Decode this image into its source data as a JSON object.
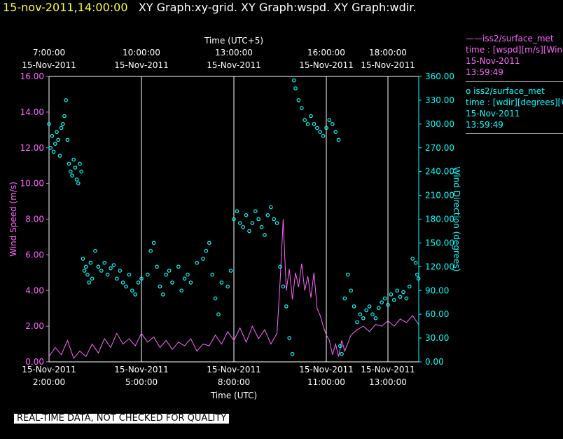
{
  "header": {
    "timestamp": "15-nov-2011,14:00:00",
    "titles": "XY Graph:xy-grid.  XY Graph:wspd.  XY Graph:wdir."
  },
  "disclaimer": "REAL-TIME DATA, NOT CHECKED FOR QUALITY",
  "legend": [
    {
      "line1": "——iss2/surface_met",
      "line2": "time : [wspd][m/s][Wind",
      "line3": "15-Nov-2011",
      "line4": "13:59:49"
    },
    {
      "line1": "o  iss2/surface_met",
      "line2": "time : [wdir][degrees][W",
      "line3": "15-Nov-2011",
      "line4": "13:59:49"
    }
  ],
  "colors": {
    "wspd": "#ff66ff",
    "wdir": "#00ffff",
    "grid": "#ffffff",
    "timestamp": "#ffff33"
  },
  "chart_data": {
    "type": "line",
    "top_axis_title": "Time (UTC+5)",
    "top_ticks": [
      {
        "line1": "7:00:00",
        "line2": "15-Nov-2011",
        "hour": 2.0
      },
      {
        "line1": "10:00:00",
        "line2": "15-Nov-2011",
        "hour": 5.0
      },
      {
        "line1": "13:00:00",
        "line2": "15-Nov-2011",
        "hour": 8.0
      },
      {
        "line1": "16:00:00",
        "line2": "15-Nov-2011",
        "hour": 11.0
      },
      {
        "line1": "18:00:00",
        "line2": "15-Nov-2011",
        "hour": 13.0
      }
    ],
    "xlabel": "Time (UTC)",
    "bottom_ticks": [
      {
        "line1": "15-Nov-2011",
        "line2": "2:00:00",
        "hour": 2.0
      },
      {
        "line1": "15-Nov-2011",
        "line2": "5:00:00",
        "hour": 5.0
      },
      {
        "line1": "15-Nov-2011",
        "line2": "8:00:00",
        "hour": 8.0
      },
      {
        "line1": "15-Nov-2011",
        "line2": "11:00:00",
        "hour": 11.0
      },
      {
        "line1": "15-Nov-2011",
        "line2": "13:00:00",
        "hour": 13.0
      }
    ],
    "xlim_hours_utc": [
      2.0,
      14.0
    ],
    "ylabel_left": "Wind Speed (m/s)",
    "ylim_left": [
      0,
      16
    ],
    "yticks_left": [
      "0.00",
      "2.00",
      "4.00",
      "6.00",
      "8.00",
      "10.00",
      "12.00",
      "14.00",
      "16.00"
    ],
    "ylabel_right": "Wind Direction (degrees)",
    "ylim_right": [
      0,
      360
    ],
    "yticks_right": [
      "0.00",
      "30.00",
      "60.00",
      "90.00",
      "120.00",
      "150.00",
      "180.00",
      "210.00",
      "240.00",
      "270.00",
      "300.00",
      "330.00",
      "360.00"
    ],
    "grid": "vertical lines at bottom ticks",
    "series": [
      {
        "name": "iss2/surface_met time : [wspd][m/s]",
        "axis": "left",
        "style": "line",
        "points": [
          [
            2.0,
            0.3
          ],
          [
            2.2,
            0.8
          ],
          [
            2.4,
            0.4
          ],
          [
            2.6,
            1.2
          ],
          [
            2.8,
            0.2
          ],
          [
            3.0,
            0.6
          ],
          [
            3.2,
            0.3
          ],
          [
            3.4,
            1.0
          ],
          [
            3.6,
            0.5
          ],
          [
            3.8,
            1.3
          ],
          [
            4.0,
            0.8
          ],
          [
            4.2,
            1.6
          ],
          [
            4.4,
            1.0
          ],
          [
            4.6,
            1.3
          ],
          [
            4.8,
            0.9
          ],
          [
            5.0,
            1.6
          ],
          [
            5.2,
            1.1
          ],
          [
            5.4,
            1.4
          ],
          [
            5.6,
            0.8
          ],
          [
            5.8,
            1.2
          ],
          [
            6.0,
            0.7
          ],
          [
            6.2,
            1.1
          ],
          [
            6.4,
            0.9
          ],
          [
            6.6,
            1.3
          ],
          [
            6.8,
            0.6
          ],
          [
            7.0,
            1.0
          ],
          [
            7.2,
            0.9
          ],
          [
            7.4,
            1.5
          ],
          [
            7.6,
            1.0
          ],
          [
            7.8,
            1.7
          ],
          [
            8.0,
            1.2
          ],
          [
            8.2,
            1.9
          ],
          [
            8.4,
            1.1
          ],
          [
            8.6,
            2.0
          ],
          [
            8.8,
            1.3
          ],
          [
            9.0,
            1.8
          ],
          [
            9.2,
            1.0
          ],
          [
            9.4,
            1.6
          ],
          [
            9.5,
            4.5
          ],
          [
            9.6,
            8.0
          ],
          [
            9.7,
            4.0
          ],
          [
            9.8,
            5.2
          ],
          [
            9.9,
            3.5
          ],
          [
            10.0,
            5.0
          ],
          [
            10.1,
            4.2
          ],
          [
            10.2,
            5.5
          ],
          [
            10.3,
            4.0
          ],
          [
            10.4,
            4.8
          ],
          [
            10.5,
            3.6
          ],
          [
            10.6,
            5.0
          ],
          [
            10.7,
            3.0
          ],
          [
            10.8,
            2.6
          ],
          [
            10.9,
            2.0
          ],
          [
            11.0,
            1.5
          ],
          [
            11.1,
            1.2
          ],
          [
            11.2,
            0.4
          ],
          [
            11.3,
            1.0
          ],
          [
            11.4,
            0.3
          ],
          [
            11.5,
            1.2
          ],
          [
            11.6,
            0.6
          ],
          [
            11.8,
            1.5
          ],
          [
            12.0,
            1.8
          ],
          [
            12.2,
            2.0
          ],
          [
            12.4,
            1.7
          ],
          [
            12.6,
            2.1
          ],
          [
            12.8,
            2.0
          ],
          [
            13.0,
            2.3
          ],
          [
            13.2,
            2.0
          ],
          [
            13.4,
            2.4
          ],
          [
            13.6,
            2.2
          ],
          [
            13.8,
            2.6
          ],
          [
            13.99,
            2.1
          ]
        ]
      },
      {
        "name": "iss2/surface_met time : [wdir][degrees]",
        "axis": "right",
        "style": "markers",
        "points": [
          [
            2.0,
            300
          ],
          [
            2.05,
            270
          ],
          [
            2.1,
            285
          ],
          [
            2.15,
            265
          ],
          [
            2.2,
            275
          ],
          [
            2.25,
            290
          ],
          [
            2.3,
            280
          ],
          [
            2.35,
            260
          ],
          [
            2.4,
            295
          ],
          [
            2.45,
            300
          ],
          [
            2.5,
            310
          ],
          [
            2.55,
            330
          ],
          [
            2.6,
            280
          ],
          [
            2.65,
            250
          ],
          [
            2.7,
            240
          ],
          [
            2.75,
            235
          ],
          [
            2.8,
            255
          ],
          [
            2.85,
            245
          ],
          [
            2.9,
            230
          ],
          [
            2.95,
            225
          ],
          [
            3.0,
            250
          ],
          [
            3.05,
            240
          ],
          [
            3.1,
            130
          ],
          [
            3.15,
            115
          ],
          [
            3.2,
            120
          ],
          [
            3.25,
            110
          ],
          [
            3.3,
            100
          ],
          [
            3.35,
            125
          ],
          [
            3.4,
            105
          ],
          [
            3.5,
            140
          ],
          [
            3.6,
            120
          ],
          [
            3.7,
            115
          ],
          [
            3.8,
            125
          ],
          [
            3.9,
            110
          ],
          [
            4.0,
            118
          ],
          [
            4.1,
            122
          ],
          [
            4.2,
            105
          ],
          [
            4.3,
            115
          ],
          [
            4.4,
            100
          ],
          [
            4.5,
            95
          ],
          [
            4.6,
            110
          ],
          [
            4.7,
            90
          ],
          [
            4.8,
            85
          ],
          [
            4.9,
            100
          ],
          [
            5.0,
            105
          ],
          [
            5.2,
            110
          ],
          [
            5.3,
            140
          ],
          [
            5.4,
            150
          ],
          [
            5.5,
            120
          ],
          [
            5.6,
            95
          ],
          [
            5.7,
            85
          ],
          [
            5.8,
            110
          ],
          [
            5.9,
            115
          ],
          [
            6.0,
            100
          ],
          [
            6.2,
            120
          ],
          [
            6.3,
            90
          ],
          [
            6.4,
            105
          ],
          [
            6.5,
            110
          ],
          [
            6.6,
            100
          ],
          [
            6.8,
            125
          ],
          [
            7.0,
            130
          ],
          [
            7.1,
            140
          ],
          [
            7.2,
            150
          ],
          [
            7.3,
            110
          ],
          [
            7.4,
            80
          ],
          [
            7.5,
            60
          ],
          [
            7.6,
            100
          ],
          [
            7.8,
            95
          ],
          [
            7.9,
            115
          ],
          [
            8.0,
            180
          ],
          [
            8.1,
            190
          ],
          [
            8.2,
            175
          ],
          [
            8.3,
            170
          ],
          [
            8.4,
            185
          ],
          [
            8.5,
            165
          ],
          [
            8.6,
            175
          ],
          [
            8.7,
            190
          ],
          [
            8.8,
            180
          ],
          [
            8.9,
            170
          ],
          [
            9.0,
            160
          ],
          [
            9.1,
            185
          ],
          [
            9.2,
            195
          ],
          [
            9.3,
            180
          ],
          [
            9.4,
            175
          ],
          [
            9.5,
            120
          ],
          [
            9.6,
            95
          ],
          [
            9.7,
            70
          ],
          [
            9.8,
            30
          ],
          [
            9.9,
            10
          ],
          [
            9.95,
            355
          ],
          [
            10.0,
            345
          ],
          [
            10.1,
            330
          ],
          [
            10.2,
            320
          ],
          [
            10.3,
            305
          ],
          [
            10.4,
            300
          ],
          [
            10.5,
            310
          ],
          [
            10.6,
            300
          ],
          [
            10.7,
            295
          ],
          [
            10.8,
            290
          ],
          [
            10.9,
            285
          ],
          [
            11.0,
            295
          ],
          [
            11.1,
            305
          ],
          [
            11.2,
            300
          ],
          [
            11.3,
            290
          ],
          [
            11.4,
            280
          ],
          [
            11.45,
            20
          ],
          [
            11.5,
            10
          ],
          [
            11.6,
            80
          ],
          [
            11.7,
            110
          ],
          [
            11.8,
            90
          ],
          [
            11.9,
            70
          ],
          [
            12.0,
            50
          ],
          [
            12.1,
            60
          ],
          [
            12.2,
            55
          ],
          [
            12.3,
            65
          ],
          [
            12.4,
            70
          ],
          [
            12.5,
            60
          ],
          [
            12.6,
            55
          ],
          [
            12.7,
            68
          ],
          [
            12.8,
            75
          ],
          [
            12.9,
            80
          ],
          [
            13.0,
            72
          ],
          [
            13.1,
            85
          ],
          [
            13.2,
            78
          ],
          [
            13.3,
            90
          ],
          [
            13.4,
            82
          ],
          [
            13.5,
            88
          ],
          [
            13.6,
            80
          ],
          [
            13.7,
            95
          ],
          [
            13.8,
            130
          ],
          [
            13.9,
            125
          ],
          [
            13.95,
            110
          ],
          [
            13.99,
            105
          ]
        ]
      }
    ]
  }
}
